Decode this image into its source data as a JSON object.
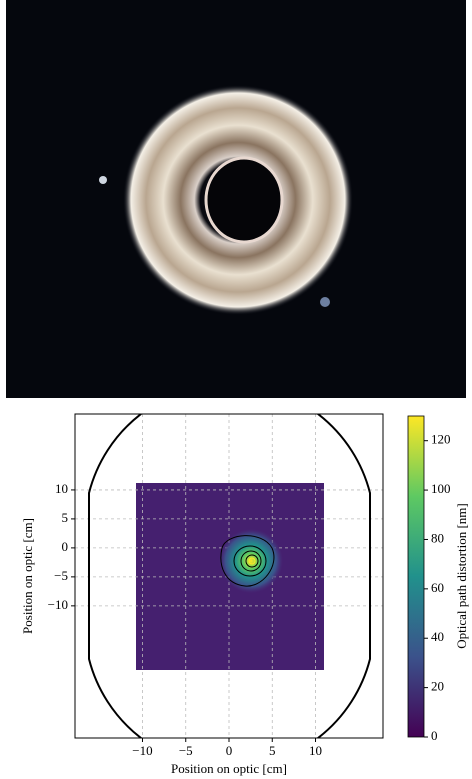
{
  "chart_data": {
    "type": "heatmap",
    "xlabel": "Position on optic [cm]",
    "ylabel": "Position on optic [cm]",
    "colorbar_label": "Optical path distortion [nm]",
    "xlim": [
      -17.8,
      17.8
    ],
    "ylim": [
      -32.8,
      23.1
    ],
    "xticks": [
      {
        "value": -10,
        "label": "−10"
      },
      {
        "value": -5,
        "label": "−5"
      },
      0,
      5,
      10
    ],
    "yticks": [
      {
        "value": -10,
        "label": "−10"
      },
      {
        "value": -5,
        "label": "−5"
      },
      0,
      5,
      10
    ],
    "clim": [
      0,
      130
    ],
    "cticks": [
      0,
      20,
      40,
      60,
      80,
      100,
      120
    ],
    "grid": true
  }
}
